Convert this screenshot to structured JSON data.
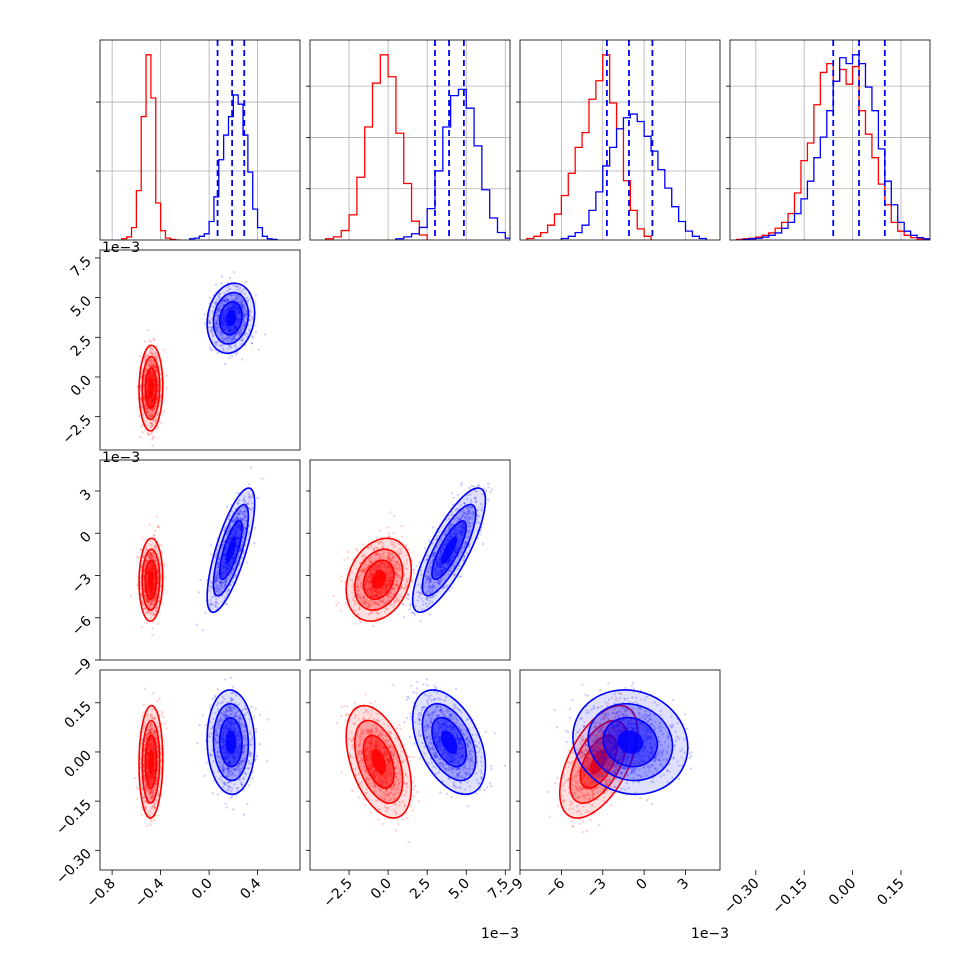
{
  "chart_data": {
    "type": "corner",
    "grid": true,
    "series": [
      {
        "color": "#ff0000",
        "show_quantiles": false
      },
      {
        "color": "#0000ff",
        "show_quantiles": true
      }
    ],
    "panels": [
      {
        "row": 0,
        "col": 0,
        "type": "histogram",
        "xlim": [
          -0.9,
          0.75
        ],
        "ygrid": [
          1,
          2
        ],
        "series": [
          {
            "color": "#ff0000",
            "bin_edges": [
              -0.72,
              -0.68,
              -0.64,
              -0.6,
              -0.56,
              -0.52,
              -0.48,
              -0.44,
              -0.4,
              -0.36,
              -0.32,
              -0.28,
              -0.24
            ],
            "counts": [
              0.02,
              0.05,
              0.2,
              0.8,
              2.0,
              3.0,
              2.3,
              0.6,
              0.15,
              0.03,
              0.01,
              0
            ]
          },
          {
            "color": "#0000ff",
            "bin_edges": [
              -0.16,
              -0.12,
              -0.08,
              -0.04,
              0.0,
              0.04,
              0.08,
              0.12,
              0.16,
              0.2,
              0.24,
              0.28,
              0.32,
              0.36,
              0.4,
              0.44,
              0.48,
              0.52,
              0.56
            ],
            "counts": [
              0.02,
              0.03,
              0.06,
              0.1,
              0.3,
              0.7,
              1.3,
              1.7,
              2.0,
              2.35,
              2.2,
              1.7,
              1.1,
              0.5,
              0.2,
              0.06,
              0.02,
              0.01
            ]
          }
        ],
        "quantile_lines": [
          0.07,
          0.19,
          0.29
        ]
      },
      {
        "row": 0,
        "col": 1,
        "type": "histogram",
        "xlim": [
          -5,
          7.8
        ],
        "ygrid": [
          1,
          2,
          3
        ],
        "series": [
          {
            "color": "#ff0000",
            "bin_edges": [
              -4.0,
              -3.5,
              -3.0,
              -2.5,
              -2.0,
              -1.5,
              -1.0,
              -0.5,
              0.0,
              0.5,
              1.0,
              1.5,
              2.0,
              2.5
            ],
            "counts": [
              0.02,
              0.05,
              0.15,
              0.4,
              1.0,
              1.8,
              2.5,
              2.95,
              2.6,
              1.7,
              0.9,
              0.3,
              0.08
            ]
          },
          {
            "color": "#0000ff",
            "bin_edges": [
              0.5,
              1.0,
              1.5,
              2.0,
              2.5,
              3.0,
              3.5,
              4.0,
              4.5,
              5.0,
              5.5,
              6.0,
              6.5,
              7.0,
              7.5,
              8.0
            ],
            "counts": [
              0.02,
              0.05,
              0.1,
              0.2,
              0.5,
              1.1,
              1.8,
              2.3,
              2.4,
              2.1,
              1.5,
              0.8,
              0.35,
              0.12,
              0.03
            ]
          }
        ],
        "quantile_lines": [
          3.0,
          3.9,
          4.85
        ],
        "offset_label": "1e−3"
      },
      {
        "row": 0,
        "col": 2,
        "type": "histogram",
        "xlim": [
          -9,
          5.5
        ],
        "ygrid": [
          1,
          2
        ],
        "series": [
          {
            "color": "#ff0000",
            "bin_edges": [
              -8.5,
              -8.0,
              -7.5,
              -7.0,
              -6.5,
              -6.0,
              -5.5,
              -5.0,
              -4.5,
              -4.0,
              -3.5,
              -3.0,
              -2.5,
              -2.0,
              -1.5,
              -1.0,
              -0.5,
              0.0,
              0.5
            ],
            "counts": [
              0.02,
              0.05,
              0.1,
              0.2,
              0.35,
              0.6,
              0.9,
              1.25,
              1.45,
              1.9,
              2.15,
              2.5,
              1.85,
              1.5,
              0.8,
              0.4,
              0.15,
              0.05
            ]
          },
          {
            "color": "#0000ff",
            "bin_edges": [
              -6.0,
              -5.5,
              -5.0,
              -4.5,
              -4.0,
              -3.5,
              -3.0,
              -2.5,
              -2.0,
              -1.5,
              -1.0,
              -0.5,
              0.0,
              0.5,
              1.0,
              1.5,
              2.0,
              2.5,
              3.0,
              3.5,
              4.0,
              4.5
            ],
            "counts": [
              0.02,
              0.05,
              0.1,
              0.2,
              0.4,
              0.65,
              1.0,
              1.25,
              1.5,
              1.65,
              1.7,
              1.6,
              1.4,
              1.2,
              0.95,
              0.7,
              0.45,
              0.25,
              0.12,
              0.05,
              0.02
            ]
          }
        ],
        "quantile_lines": [
          -2.7,
          -1.1,
          0.6
        ],
        "offset_label": "1e−3"
      },
      {
        "row": 0,
        "col": 3,
        "type": "histogram",
        "xlim": [
          -0.38,
          0.24
        ],
        "ygrid": [
          1,
          2,
          3
        ],
        "series": [
          {
            "color": "#ff0000",
            "bin_edges": [
              -0.36,
              -0.34,
              -0.32,
              -0.3,
              -0.28,
              -0.26,
              -0.24,
              -0.22,
              -0.2,
              -0.18,
              -0.16,
              -0.14,
              -0.12,
              -0.1,
              -0.08,
              -0.06,
              -0.04,
              -0.02,
              0.0,
              0.02,
              0.04,
              0.06,
              0.08,
              0.1,
              0.12,
              0.14,
              0.16,
              0.18,
              0.2,
              0.22,
              0.24
            ],
            "counts": [
              0.01,
              0.02,
              0.03,
              0.05,
              0.08,
              0.12,
              0.2,
              0.3,
              0.45,
              0.8,
              1.35,
              1.65,
              2.3,
              2.85,
              3.0,
              2.7,
              2.9,
              2.65,
              2.95,
              2.2,
              1.8,
              1.4,
              0.95,
              0.6,
              0.3,
              0.15,
              0.08,
              0.04,
              0.02,
              0.01
            ]
          },
          {
            "color": "#0000ff",
            "bin_edges": [
              -0.34,
              -0.32,
              -0.3,
              -0.28,
              -0.26,
              -0.24,
              -0.22,
              -0.2,
              -0.18,
              -0.16,
              -0.14,
              -0.12,
              -0.1,
              -0.08,
              -0.06,
              -0.04,
              -0.02,
              0.0,
              0.02,
              0.04,
              0.06,
              0.08,
              0.1,
              0.12,
              0.14,
              0.16,
              0.18,
              0.2,
              0.22,
              0.24
            ],
            "counts": [
              0.01,
              0.02,
              0.03,
              0.05,
              0.08,
              0.12,
              0.2,
              0.3,
              0.45,
              0.7,
              1.0,
              1.4,
              1.75,
              2.2,
              2.7,
              3.1,
              3.0,
              3.15,
              3.0,
              2.6,
              2.2,
              1.55,
              1.0,
              0.6,
              0.3,
              0.15,
              0.08,
              0.04,
              0.02
            ]
          }
        ],
        "quantile_lines": [
          -0.06,
          0.02,
          0.1
        ]
      },
      {
        "row": 1,
        "col": 0,
        "type": "scatter",
        "xlim": [
          -0.9,
          0.75
        ],
        "ylim": [
          -0.0046,
          0.008
        ],
        "offset_label": "1e−3",
        "clusters": [
          {
            "color": "#ff0000",
            "cx": -0.48,
            "cy": -0.0007,
            "sx": 0.04,
            "sy": 0.0011,
            "rho": 0.05
          },
          {
            "color": "#0000ff",
            "cx": 0.18,
            "cy": 0.0037,
            "sx": 0.08,
            "sy": 0.0009,
            "rho": 0.15
          }
        ]
      },
      {
        "row": 2,
        "col": 0,
        "type": "scatter",
        "xlim": [
          -0.9,
          0.75
        ],
        "ylim": [
          -0.009,
          0.0052
        ],
        "offset_label": "1e−3",
        "clusters": [
          {
            "color": "#ff0000",
            "cx": -0.48,
            "cy": -0.0033,
            "sx": 0.04,
            "sy": 0.0012,
            "rho": 0.05
          },
          {
            "color": "#0000ff",
            "cx": 0.18,
            "cy": -0.0012,
            "sx": 0.08,
            "sy": 0.0018,
            "rho": 0.75
          }
        ]
      },
      {
        "row": 2,
        "col": 1,
        "type": "scatter",
        "xlim": [
          -5,
          7.8
        ],
        "ylim": [
          -0.009,
          0.0052
        ],
        "clusters": [
          {
            "color": "#ff0000",
            "cx": -0.6,
            "cy": -0.0033,
            "sx": 0.85,
            "sy": 0.0012,
            "rho": 0.25
          },
          {
            "color": "#0000ff",
            "cx": 3.9,
            "cy": -0.0012,
            "sx": 0.95,
            "sy": 0.0018,
            "rho": 0.8
          }
        ]
      },
      {
        "row": 3,
        "col": 0,
        "type": "scatter",
        "xlim": [
          -0.9,
          0.75
        ],
        "ylim": [
          -0.36,
          0.25
        ],
        "clusters": [
          {
            "color": "#ff0000",
            "cx": -0.48,
            "cy": -0.03,
            "sx": 0.04,
            "sy": 0.07,
            "rho": 0.05
          },
          {
            "color": "#0000ff",
            "cx": 0.18,
            "cy": 0.03,
            "sx": 0.08,
            "sy": 0.065,
            "rho": -0.05
          }
        ]
      },
      {
        "row": 3,
        "col": 1,
        "type": "scatter",
        "xlim": [
          -5,
          7.8
        ],
        "ylim": [
          -0.36,
          0.25
        ],
        "clusters": [
          {
            "color": "#ff0000",
            "cx": -0.6,
            "cy": -0.03,
            "sx": 0.85,
            "sy": 0.07,
            "rho": -0.45
          },
          {
            "color": "#0000ff",
            "cx": 3.9,
            "cy": 0.03,
            "sx": 0.95,
            "sy": 0.065,
            "rho": -0.45
          }
        ]
      },
      {
        "row": 3,
        "col": 2,
        "type": "scatter",
        "xlim": [
          -9,
          5.5
        ],
        "ylim": [
          -0.36,
          0.25
        ],
        "clusters": [
          {
            "color": "#ff0000",
            "cx": -3.3,
            "cy": -0.03,
            "sx": 1.15,
            "sy": 0.07,
            "rho": 0.55
          },
          {
            "color": "#0000ff",
            "cx": -1.0,
            "cy": 0.03,
            "sx": 1.7,
            "sy": 0.065,
            "rho": -0.1
          }
        ]
      }
    ],
    "axes": {
      "bottom": [
        {
          "col": 0,
          "ticks": [
            -0.8,
            -0.4,
            0.0,
            0.4
          ],
          "labels": [
            "−0.8",
            "−0.4",
            "0.0",
            "0.4"
          ]
        },
        {
          "col": 1,
          "ticks": [
            -2.5,
            0.0,
            2.5,
            5.0,
            7.5
          ],
          "labels": [
            "−2.5",
            "0.0",
            "2.5",
            "5.0",
            "7.5"
          ],
          "offset_label": "1e−3"
        },
        {
          "col": 2,
          "ticks": [
            -9,
            -6,
            -3,
            0,
            3
          ],
          "labels": [
            "−9",
            "−6",
            "−3",
            "0",
            "3"
          ],
          "offset_label": "1e−3"
        },
        {
          "col": 3,
          "ticks": [
            -0.3,
            -0.15,
            0.0,
            0.15
          ],
          "labels": [
            "−0.30",
            "−0.15",
            "0.00",
            "0.15"
          ]
        }
      ],
      "left": [
        {
          "row": 1,
          "ticks": [
            -0.0025,
            0.0,
            0.0025,
            0.005,
            0.0075
          ],
          "labels": [
            "−2.5",
            "0.0",
            "2.5",
            "5.0",
            "7.5"
          ]
        },
        {
          "row": 2,
          "ticks": [
            -0.009,
            -0.006,
            -0.003,
            0.0,
            0.003
          ],
          "labels": [
            "−9",
            "−6",
            "−3",
            "0",
            "3"
          ]
        },
        {
          "row": 3,
          "ticks": [
            -0.3,
            -0.15,
            0.0,
            0.15
          ],
          "labels": [
            "−0.30",
            "−0.15",
            "0.00",
            "0.15"
          ]
        }
      ]
    }
  }
}
